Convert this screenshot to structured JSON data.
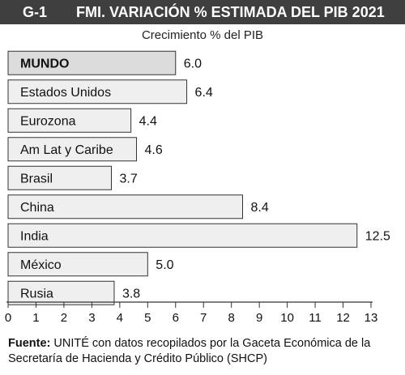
{
  "header": {
    "code": "G-1",
    "title": "FMI. VARIACIÓN % ESTIMADA DEL PIB 2021"
  },
  "chart_data": {
    "type": "bar",
    "orientation": "horizontal",
    "title": "FMI. VARIACIÓN % ESTIMADA DEL PIB 2021",
    "subtitle": "Crecimiento % del PIB",
    "categories": [
      "MUNDO",
      "Estados Unidos",
      "Eurozona",
      "Am Lat y Caribe",
      "Brasil",
      "China",
      "India",
      "México",
      "Rusia"
    ],
    "values": [
      6.0,
      6.4,
      4.4,
      4.6,
      3.7,
      8.4,
      12.5,
      5.0,
      3.8
    ],
    "value_labels": [
      "6.0",
      "6.4",
      "4.4",
      "4.6",
      "3.7",
      "8.4",
      "12.5",
      "5.0",
      "3.8"
    ],
    "highlight": [
      "MUNDO"
    ],
    "xlim": [
      0,
      13
    ],
    "xticks": [
      0,
      1,
      2,
      3,
      4,
      5,
      6,
      7,
      8,
      9,
      10,
      11,
      12,
      13
    ],
    "bar_color": "#efefef",
    "highlight_color": "#dcdcdc",
    "bar_outline": "#333333"
  },
  "source": {
    "label": "Fuente:",
    "text": " UNITÉ con datos recopilados por la Gaceta Económica de la Secretaría de Hacienda y Crédito Público (SHCP)"
  }
}
